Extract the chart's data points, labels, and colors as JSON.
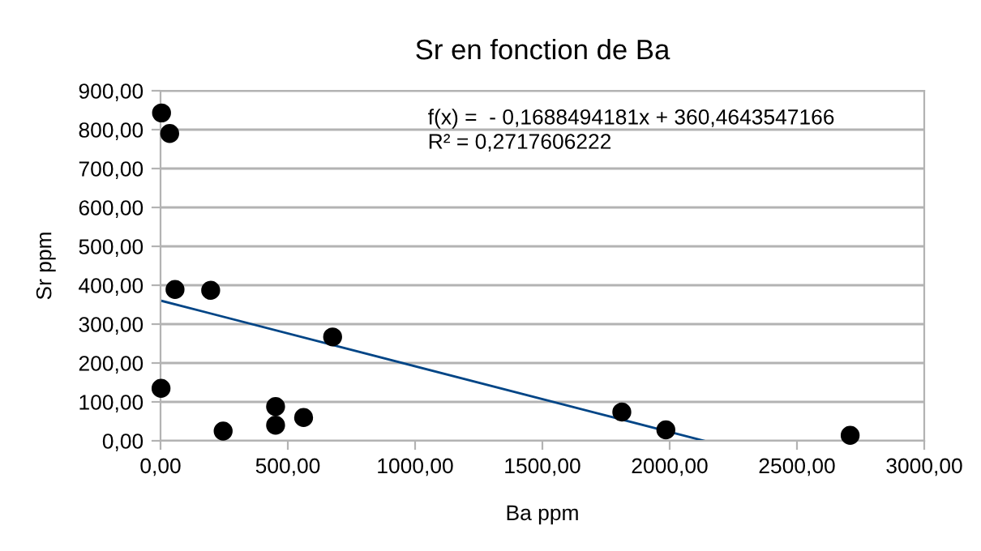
{
  "chart_data": {
    "type": "scatter",
    "title": "Sr en fonction de Ba",
    "xlabel": "Ba ppm",
    "ylabel": "Sr ppm",
    "series": [
      {
        "marker": "circle",
        "color": "#000000",
        "x": [
          4,
          36,
          57,
          197,
          2,
          246,
          452,
          452,
          562,
          676,
          1812,
          1985,
          2709
        ],
        "values": [
          843,
          790,
          389,
          387,
          135,
          25,
          40,
          88,
          60,
          267,
          74,
          28,
          14
        ]
      },
      {
        "type": "line",
        "marker": "none",
        "color": "#004586",
        "x": [
          0,
          2135
        ],
        "values": [
          360.5,
          0
        ]
      }
    ],
    "xlim": [
      0,
      3000
    ],
    "xticks": [
      {
        "value": 0,
        "label": "0,00"
      },
      {
        "value": 500,
        "label": "500,00"
      },
      {
        "value": 1000,
        "label": "1000,00"
      },
      {
        "value": 1500,
        "label": "1500,00"
      },
      {
        "value": 2000,
        "label": "2000,00"
      },
      {
        "value": 2500,
        "label": "2500,00"
      },
      {
        "value": 3000,
        "label": "3000,00"
      }
    ],
    "ylim": [
      0,
      900
    ],
    "yticks": [
      {
        "value": 0,
        "label": "0,00"
      },
      {
        "value": 100,
        "label": "100,00"
      },
      {
        "value": 200,
        "label": "200,00"
      },
      {
        "value": 300,
        "label": "300,00"
      },
      {
        "value": 400,
        "label": "400,00"
      },
      {
        "value": 500,
        "label": "500,00"
      },
      {
        "value": 600,
        "label": "600,00"
      },
      {
        "value": 700,
        "label": "700,00"
      },
      {
        "value": 800,
        "label": "800,00"
      },
      {
        "value": 900,
        "label": "900,00"
      }
    ],
    "grid": "y",
    "legend": false,
    "annotations": [
      "f(x) =  - 0,1688494181x + 360,4643547166",
      "R² = 0,2717606222"
    ]
  }
}
